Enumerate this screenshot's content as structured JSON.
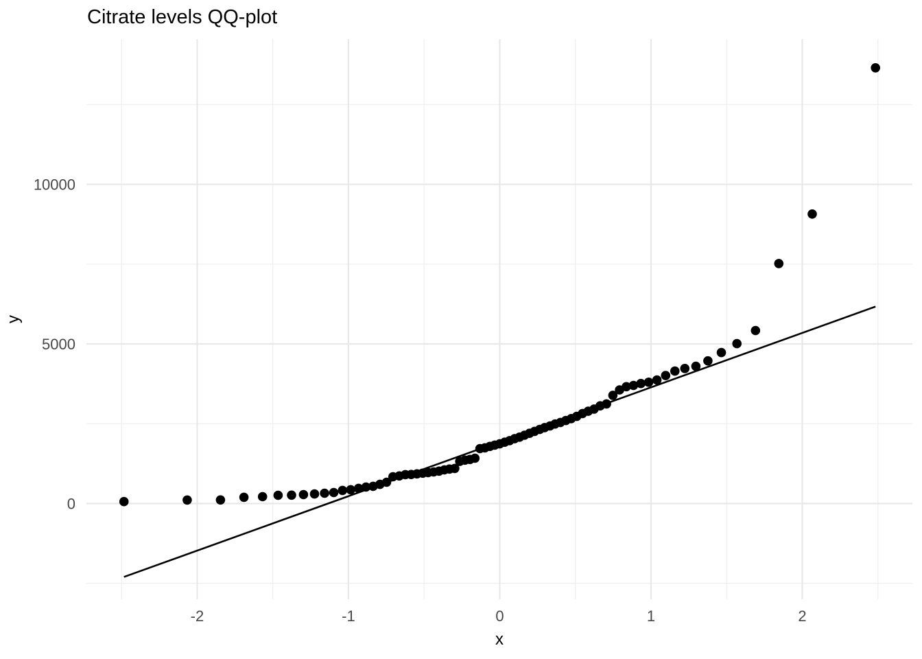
{
  "title": "Citrate levels QQ-plot",
  "colors": {
    "background": "#ffffff",
    "point": "#000000",
    "reference_line": "#000000",
    "grid_major": "#e8e8e8",
    "grid_minor": "#f0f0f0",
    "tick_label": "#474747",
    "axis_title": "#000000",
    "title": "#000000"
  },
  "chart_data": {
    "type": "scatter",
    "title": "Citrate levels QQ-plot",
    "xlabel": "x",
    "ylabel": "y",
    "xlim": [
      -2.732,
      2.728
    ],
    "ylim": [
      -3000,
      14550
    ],
    "grid": true,
    "legend": false,
    "x_tick_values": [
      -2,
      -1,
      0,
      1,
      2
    ],
    "x_tick_labels": [
      "-2",
      "-1",
      "0",
      "1",
      "2"
    ],
    "y_tick_values": [
      0,
      5000,
      10000
    ],
    "y_tick_labels": [
      "0",
      "5000",
      "10000"
    ],
    "x_minor_ticks": [
      -2.5,
      -1.5,
      -0.5,
      0.5,
      1.5,
      2.5
    ],
    "y_minor_ticks": [
      -2500,
      2500,
      7500,
      12500
    ],
    "series": [
      {
        "name": "sample-quantiles",
        "type": "points",
        "points": [
          [
            -2.484,
            60
          ],
          [
            -2.066,
            110
          ],
          [
            -1.846,
            112
          ],
          [
            -1.691,
            195
          ],
          [
            -1.568,
            215
          ],
          [
            -1.465,
            258
          ],
          [
            -1.376,
            262
          ],
          [
            -1.297,
            280
          ],
          [
            -1.224,
            300
          ],
          [
            -1.158,
            323
          ],
          [
            -1.097,
            345
          ],
          [
            -1.039,
            410
          ],
          [
            -0.985,
            432
          ],
          [
            -0.933,
            475
          ],
          [
            -0.884,
            517
          ],
          [
            -0.837,
            540
          ],
          [
            -0.792,
            600
          ],
          [
            -0.748,
            668
          ],
          [
            -0.706,
            840
          ],
          [
            -0.664,
            865
          ],
          [
            -0.624,
            905
          ],
          [
            -0.585,
            910
          ],
          [
            -0.547,
            930
          ],
          [
            -0.509,
            950
          ],
          [
            -0.473,
            970
          ],
          [
            -0.437,
            990
          ],
          [
            -0.401,
            1015
          ],
          [
            -0.366,
            1055
          ],
          [
            -0.332,
            1080
          ],
          [
            -0.297,
            1100
          ],
          [
            -0.264,
            1320
          ],
          [
            -0.23,
            1360
          ],
          [
            -0.197,
            1380
          ],
          [
            -0.164,
            1420
          ],
          [
            -0.131,
            1720
          ],
          [
            -0.098,
            1745
          ],
          [
            -0.065,
            1790
          ],
          [
            -0.033,
            1830
          ],
          [
            0.0,
            1870
          ],
          [
            0.033,
            1920
          ],
          [
            0.065,
            1970
          ],
          [
            0.098,
            2030
          ],
          [
            0.131,
            2080
          ],
          [
            0.164,
            2140
          ],
          [
            0.197,
            2200
          ],
          [
            0.23,
            2260
          ],
          [
            0.264,
            2320
          ],
          [
            0.297,
            2380
          ],
          [
            0.332,
            2430
          ],
          [
            0.366,
            2490
          ],
          [
            0.401,
            2540
          ],
          [
            0.437,
            2600
          ],
          [
            0.473,
            2660
          ],
          [
            0.509,
            2730
          ],
          [
            0.547,
            2820
          ],
          [
            0.585,
            2890
          ],
          [
            0.624,
            2960
          ],
          [
            0.664,
            3060
          ],
          [
            0.706,
            3120
          ],
          [
            0.748,
            3390
          ],
          [
            0.792,
            3560
          ],
          [
            0.837,
            3660
          ],
          [
            0.884,
            3700
          ],
          [
            0.933,
            3760
          ],
          [
            0.985,
            3800
          ],
          [
            1.039,
            3870
          ],
          [
            1.097,
            4010
          ],
          [
            1.158,
            4150
          ],
          [
            1.224,
            4230
          ],
          [
            1.297,
            4300
          ],
          [
            1.376,
            4470
          ],
          [
            1.465,
            4730
          ],
          [
            1.568,
            5010
          ],
          [
            1.691,
            5420
          ],
          [
            1.845,
            7520
          ],
          [
            2.066,
            9070
          ],
          [
            2.484,
            13650
          ]
        ]
      },
      {
        "name": "qq-reference-line",
        "type": "abline",
        "slope": 1705,
        "intercept": 1935,
        "x_range": [
          -2.484,
          2.484
        ]
      }
    ]
  }
}
